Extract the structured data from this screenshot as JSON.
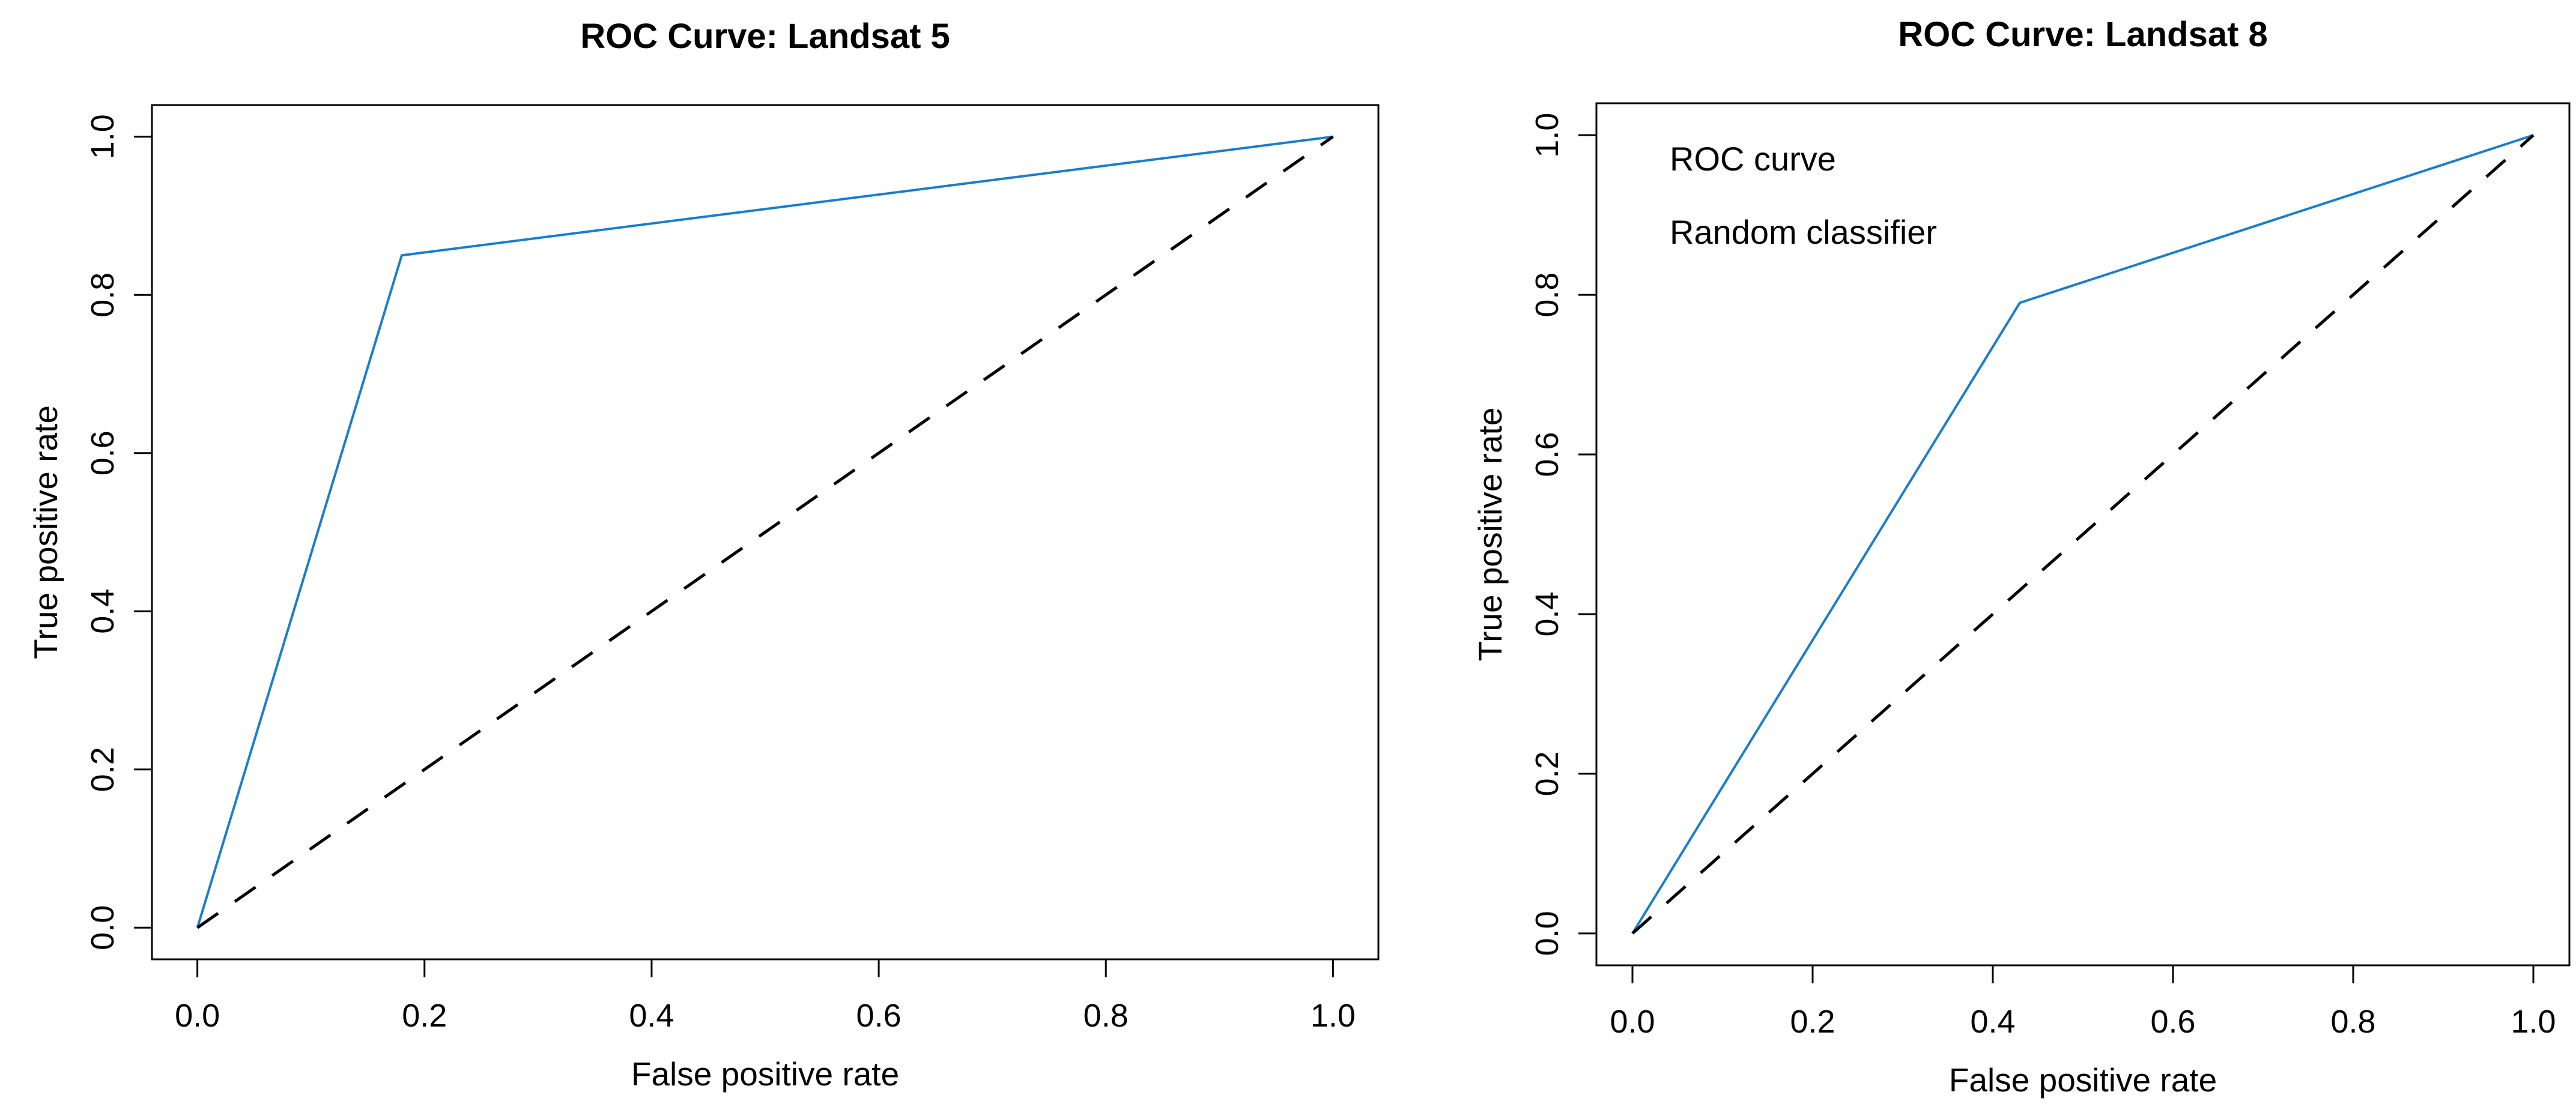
{
  "figure": {
    "background": "#ffffff"
  },
  "colors": {
    "roc_blue": "#1b7ec9",
    "classifier_black": "#000000",
    "axis_black": "#000000"
  },
  "chart_data": [
    {
      "type": "line",
      "title": "ROC Curve: Landsat 5",
      "xlabel": "False positive rate",
      "ylabel": "True positive rate",
      "xlim": [
        0,
        1
      ],
      "ylim": [
        0,
        1
      ],
      "xtick_values": [
        0.0,
        0.2,
        0.4,
        0.6,
        0.8,
        1.0
      ],
      "xtick_labels": [
        "0.0",
        "0.2",
        "0.4",
        "0.6",
        "0.8",
        "1.0"
      ],
      "ytick_values": [
        0.0,
        0.2,
        0.4,
        0.6,
        0.8,
        1.0
      ],
      "ytick_labels": [
        "0.0",
        "0.2",
        "0.4",
        "0.6",
        "0.8",
        "1.0"
      ],
      "grid": false,
      "legend": null,
      "series": [
        {
          "name": "ROC curve",
          "color": "#1b7ec9",
          "line_style": "solid",
          "line_width": 4,
          "points": [
            [
              0.0,
              0.0
            ],
            [
              0.18,
              0.85
            ],
            [
              1.0,
              1.0
            ]
          ]
        },
        {
          "name": "Random classifier",
          "color": "#000000",
          "line_style": "dashed",
          "line_width": 5,
          "points": [
            [
              0.0,
              0.0
            ],
            [
              1.0,
              1.0
            ]
          ]
        }
      ]
    },
    {
      "type": "line",
      "title": "ROC Curve: Landsat 8",
      "xlabel": "False positive rate",
      "ylabel": "True positive rate",
      "xlim": [
        0,
        1
      ],
      "ylim": [
        0,
        1
      ],
      "xtick_values": [
        0.0,
        0.2,
        0.4,
        0.6,
        0.8,
        1.0
      ],
      "xtick_labels": [
        "0.0",
        "0.2",
        "0.4",
        "0.6",
        "0.8",
        "1.0"
      ],
      "ytick_values": [
        0.0,
        0.2,
        0.4,
        0.6,
        0.8,
        1.0
      ],
      "ytick_labels": [
        "0.0",
        "0.2",
        "0.4",
        "0.6",
        "0.8",
        "1.0"
      ],
      "grid": false,
      "legend": {
        "position": "top-left",
        "entries": [
          {
            "label": "ROC curve",
            "color": "#1b7ec9"
          },
          {
            "label": "Random classifier",
            "color": "#000000"
          }
        ]
      },
      "series": [
        {
          "name": "ROC curve",
          "color": "#1b7ec9",
          "line_style": "solid",
          "line_width": 4,
          "points": [
            [
              0.0,
              0.0
            ],
            [
              0.43,
              0.79
            ],
            [
              1.0,
              1.0
            ]
          ]
        },
        {
          "name": "Random classifier",
          "color": "#000000",
          "line_style": "dashed",
          "line_width": 5,
          "points": [
            [
              0.0,
              0.0
            ],
            [
              1.0,
              1.0
            ]
          ]
        }
      ]
    }
  ]
}
